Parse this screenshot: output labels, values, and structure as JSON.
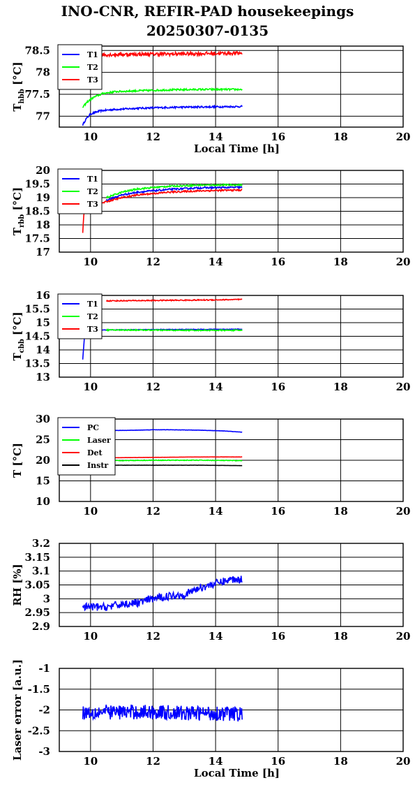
{
  "title": "INO-CNR, REFIR-PAD housekeepings",
  "subtitle": "20250307-0135",
  "chart_data": [
    {
      "type": "line",
      "ylabel_main": "T",
      "ylabel_sub": "hbb",
      "ylabel_unit": "[°C]",
      "xlabel": "Local Time [h]",
      "xlim": [
        9,
        20
      ],
      "ylim": [
        76.75,
        78.6
      ],
      "xticks": [
        10,
        12,
        14,
        16,
        18,
        20
      ],
      "yticks": [
        77,
        77.5,
        78,
        78.5
      ],
      "grid": true,
      "legend": "top-left",
      "series": [
        {
          "name": "T1",
          "color": "#0000ff",
          "noise": 0.02,
          "points": [
            [
              9.75,
              76.8
            ],
            [
              9.85,
              76.93
            ],
            [
              10.0,
              77.05
            ],
            [
              10.3,
              77.12
            ],
            [
              10.7,
              77.15
            ],
            [
              11.5,
              77.18
            ],
            [
              12.5,
              77.2
            ],
            [
              13.5,
              77.21
            ],
            [
              14.85,
              77.22
            ]
          ]
        },
        {
          "name": "T2",
          "color": "#00ff00",
          "noise": 0.02,
          "points": [
            [
              9.75,
              77.2
            ],
            [
              9.9,
              77.33
            ],
            [
              10.1,
              77.43
            ],
            [
              10.4,
              77.52
            ],
            [
              10.8,
              77.56
            ],
            [
              11.5,
              77.58
            ],
            [
              12.5,
              77.6
            ],
            [
              13.5,
              77.61
            ],
            [
              14.85,
              77.61
            ]
          ]
        },
        {
          "name": "T3",
          "color": "#ff0000",
          "noise": 0.04,
          "points": [
            [
              9.75,
              78.36
            ],
            [
              10.2,
              78.4
            ],
            [
              11.0,
              78.41
            ],
            [
              12.5,
              78.42
            ],
            [
              14.85,
              78.44
            ]
          ]
        }
      ]
    },
    {
      "type": "line",
      "ylabel_main": "T",
      "ylabel_sub": "rbb",
      "ylabel_unit": "[°C]",
      "xlabel": "",
      "xlim": [
        9,
        20
      ],
      "ylim": [
        17,
        20
      ],
      "xticks": [
        10,
        12,
        14,
        16,
        18,
        20
      ],
      "yticks": [
        17,
        17.5,
        18,
        18.5,
        19,
        19.5,
        20
      ],
      "grid": true,
      "legend": "top-left",
      "series": [
        {
          "name": "T1",
          "color": "#0000ff",
          "noise": 0.03,
          "points": [
            [
              10.5,
              18.9
            ],
            [
              11.0,
              19.1
            ],
            [
              11.5,
              19.2
            ],
            [
              12.5,
              19.3
            ],
            [
              13.5,
              19.36
            ],
            [
              14.85,
              19.38
            ]
          ]
        },
        {
          "name": "T2",
          "color": "#00ff00",
          "noise": 0.03,
          "points": [
            [
              10.5,
              19.0
            ],
            [
              11.0,
              19.2
            ],
            [
              11.5,
              19.32
            ],
            [
              12.5,
              19.42
            ],
            [
              13.5,
              19.46
            ],
            [
              14.85,
              19.47
            ]
          ]
        },
        {
          "name": "T3",
          "color": "#ff0000",
          "noise": 0.03,
          "points": [
            [
              9.75,
              17.7
            ],
            [
              9.78,
              18.3
            ],
            [
              9.82,
              18.6
            ],
            [
              10.5,
              18.85
            ],
            [
              11.0,
              19.0
            ],
            [
              11.5,
              19.1
            ],
            [
              12.5,
              19.2
            ],
            [
              13.5,
              19.25
            ],
            [
              14.85,
              19.28
            ]
          ]
        }
      ]
    },
    {
      "type": "line",
      "ylabel_main": "T",
      "ylabel_sub": "cbb",
      "ylabel_unit": "[°C]",
      "xlabel": "",
      "xlim": [
        9,
        20
      ],
      "ylim": [
        13,
        16
      ],
      "xticks": [
        10,
        12,
        14,
        16,
        18,
        20
      ],
      "yticks": [
        13,
        13.5,
        14,
        14.5,
        15,
        15.5,
        16
      ],
      "grid": true,
      "legend": "top-left",
      "series": [
        {
          "name": "T1",
          "color": "#0000ff",
          "noise": 0.01,
          "points": [
            [
              9.75,
              13.65
            ],
            [
              9.8,
              14.4
            ],
            [
              10.0,
              14.72
            ],
            [
              11.0,
              14.74
            ],
            [
              12.5,
              14.75
            ],
            [
              14.85,
              14.76
            ]
          ]
        },
        {
          "name": "T2",
          "color": "#00ff00",
          "noise": 0.02,
          "points": [
            [
              10.5,
              14.73
            ],
            [
              11.5,
              14.73
            ],
            [
              12.5,
              14.72
            ],
            [
              13.5,
              14.72
            ],
            [
              14.85,
              14.72
            ]
          ]
        },
        {
          "name": "T3",
          "color": "#ff0000",
          "noise": 0.02,
          "points": [
            [
              10.5,
              15.8
            ],
            [
              11.5,
              15.81
            ],
            [
              12.5,
              15.82
            ],
            [
              13.5,
              15.83
            ],
            [
              14.85,
              15.85
            ]
          ]
        }
      ]
    },
    {
      "type": "line",
      "ylabel_main": "T [°C]",
      "ylabel_sub": "",
      "ylabel_unit": "",
      "xlabel": "",
      "xlim": [
        9,
        20
      ],
      "ylim": [
        10,
        30
      ],
      "xticks": [
        10,
        12,
        14,
        16,
        18,
        20
      ],
      "yticks": [
        10,
        15,
        20,
        25,
        30
      ],
      "grid": true,
      "legend": "top-left",
      "series": [
        {
          "name": "PC",
          "color": "#0000ff",
          "noise": 0.03,
          "points": [
            [
              10.5,
              27.2
            ],
            [
              11.5,
              27.3
            ],
            [
              12.0,
              27.4
            ],
            [
              12.5,
              27.4
            ],
            [
              13.5,
              27.3
            ],
            [
              14.3,
              27.1
            ],
            [
              14.85,
              26.8
            ]
          ]
        },
        {
          "name": "Laser",
          "color": "#00ff00",
          "noise": 0.08,
          "points": [
            [
              10.5,
              19.9
            ],
            [
              12.0,
              20.0
            ],
            [
              13.5,
              20.0
            ],
            [
              14.85,
              19.9
            ]
          ]
        },
        {
          "name": "Det",
          "color": "#ff0000",
          "noise": 0.02,
          "points": [
            [
              10.5,
              20.6
            ],
            [
              12.0,
              20.7
            ],
            [
              13.5,
              20.8
            ],
            [
              14.85,
              20.8
            ]
          ]
        },
        {
          "name": "Instr",
          "color": "#000000",
          "noise": 0.02,
          "points": [
            [
              10.5,
              18.8
            ],
            [
              12.0,
              18.8
            ],
            [
              13.5,
              18.8
            ],
            [
              14.85,
              18.7
            ]
          ]
        }
      ]
    },
    {
      "type": "line",
      "ylabel_main": "RH [%]",
      "ylabel_sub": "",
      "ylabel_unit": "",
      "xlabel": "",
      "xlim": [
        9,
        20
      ],
      "ylim": [
        2.9,
        3.2
      ],
      "xticks": [
        10,
        12,
        14,
        16,
        18,
        20
      ],
      "yticks": [
        2.9,
        2.95,
        3,
        3.05,
        3.1,
        3.15,
        3.2
      ],
      "grid": true,
      "legend": "",
      "series": [
        {
          "name": "",
          "color": "#0000ff",
          "noise": 0.014,
          "points": [
            [
              9.75,
              2.97
            ],
            [
              10.5,
              2.97
            ],
            [
              11.0,
              2.98
            ],
            [
              11.5,
              2.985
            ],
            [
              12.0,
              3.0
            ],
            [
              12.5,
              3.01
            ],
            [
              13.0,
              3.015
            ],
            [
              13.5,
              3.04
            ],
            [
              14.0,
              3.055
            ],
            [
              14.5,
              3.07
            ],
            [
              14.85,
              3.07
            ]
          ]
        }
      ]
    },
    {
      "type": "line",
      "ylabel_main": "Laser error [a.u.]",
      "ylabel_sub": "",
      "ylabel_unit": "",
      "xlabel": "Local Time [h]",
      "xlim": [
        9,
        20
      ],
      "ylim": [
        -3,
        -1
      ],
      "xticks": [
        10,
        12,
        14,
        16,
        18,
        20
      ],
      "yticks": [
        -3,
        -2.5,
        -2,
        -1.5,
        -1
      ],
      "grid": true,
      "legend": "",
      "series": [
        {
          "name": "",
          "color": "#0000ff",
          "noise": 0.18,
          "points": [
            [
              9.75,
              -2.05
            ],
            [
              11.0,
              -2.05
            ],
            [
              12.0,
              -2.05
            ],
            [
              13.0,
              -2.08
            ],
            [
              14.0,
              -2.08
            ],
            [
              14.85,
              -2.1
            ]
          ]
        }
      ]
    }
  ]
}
